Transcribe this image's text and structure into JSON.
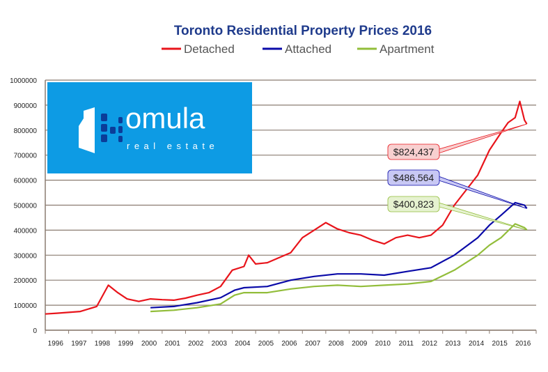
{
  "chart_data": {
    "type": "line",
    "title": "Toronto Residential Property Prices 2016",
    "legend_placement": "top",
    "xlim": [
      1995.5,
      2016.5
    ],
    "ylim": [
      0,
      1000000
    ],
    "yticks": [
      0,
      100000,
      200000,
      300000,
      400000,
      500000,
      600000,
      700000,
      800000,
      900000,
      1000000
    ],
    "xticks": [
      1996,
      1997,
      1998,
      1999,
      2000,
      2001,
      2002,
      2003,
      2004,
      2005,
      2006,
      2007,
      2008,
      2009,
      2010,
      2011,
      2012,
      2013,
      2014,
      2015,
      2016
    ],
    "grid": "horizontal",
    "series": [
      {
        "name": "Detached",
        "color": "#e8141b",
        "label": "$824,437",
        "label_fill": "#f8d0d0",
        "x": [
          1995.5,
          1996,
          1997,
          1997.7,
          1998.2,
          1998.6,
          1999,
          1999.5,
          2000,
          2000.5,
          2001,
          2001.5,
          2002,
          2002.5,
          2003,
          2003.5,
          2004,
          2004.2,
          2004.5,
          2005,
          2005.5,
          2006,
          2006.5,
          2007,
          2007.5,
          2008,
          2008.5,
          2009,
          2009.5,
          2010,
          2010.5,
          2011,
          2011.5,
          2012,
          2012.5,
          2013,
          2013.5,
          2014,
          2014.5,
          2015,
          2015.3,
          2015.6,
          2015.8,
          2016,
          2016.1
        ],
        "y": [
          65000,
          68000,
          75000,
          95000,
          180000,
          150000,
          125000,
          115000,
          125000,
          122000,
          120000,
          128000,
          140000,
          150000,
          175000,
          240000,
          255000,
          300000,
          265000,
          270000,
          290000,
          310000,
          370000,
          400000,
          430000,
          405000,
          390000,
          380000,
          360000,
          345000,
          370000,
          380000,
          370000,
          380000,
          420000,
          500000,
          560000,
          620000,
          720000,
          790000,
          830000,
          850000,
          915000,
          840000,
          824437
        ]
      },
      {
        "name": "Attached",
        "color": "#0a0aa8",
        "label": "$486,564",
        "label_fill": "#c8c8f4",
        "x": [
          2000,
          2001,
          2002,
          2003,
          2003.6,
          2004,
          2005,
          2006,
          2007,
          2008,
          2009,
          2010,
          2011,
          2012,
          2013,
          2014,
          2014.5,
          2015,
          2015.6,
          2016,
          2016.1
        ],
        "y": [
          90000,
          95000,
          110000,
          130000,
          160000,
          170000,
          175000,
          200000,
          215000,
          225000,
          225000,
          220000,
          235000,
          250000,
          300000,
          370000,
          420000,
          460000,
          510000,
          500000,
          486564
        ]
      },
      {
        "name": "Apartment",
        "color": "#92bd3a",
        "label": "$400,823",
        "label_fill": "#e6f2d0",
        "x": [
          2000,
          2001,
          2002,
          2003,
          2003.6,
          2004,
          2005,
          2006,
          2007,
          2008,
          2009,
          2010,
          2011,
          2012,
          2013,
          2014,
          2014.5,
          2015,
          2015.6,
          2016,
          2016.1
        ],
        "y": [
          75000,
          80000,
          90000,
          105000,
          140000,
          150000,
          150000,
          165000,
          175000,
          180000,
          175000,
          180000,
          185000,
          195000,
          240000,
          300000,
          340000,
          370000,
          425000,
          410000,
          400823
        ]
      }
    ]
  },
  "logo": {
    "text": "omula",
    "subtext": "real estate",
    "bg": "#0d9be4"
  }
}
